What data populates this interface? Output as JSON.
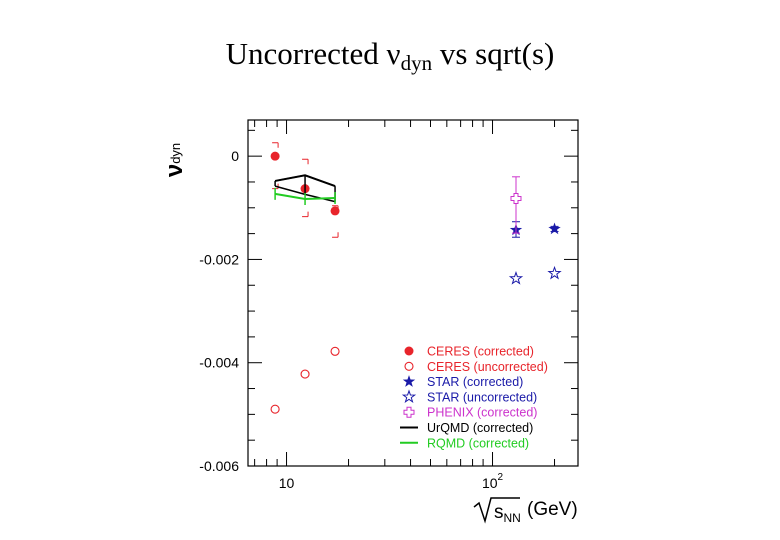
{
  "slide": {
    "title_main": "Uncorrected ν",
    "title_sub": "dyn",
    "title_tail": " vs sqrt(s)"
  },
  "chart_data": {
    "type": "scatter",
    "title": "",
    "ylabel": "ν",
    "ylabel_sub": "dyn",
    "xlabel": "(GeV)",
    "xlabel_var": "s",
    "xlabel_var_sub": "NN",
    "x_scale": "log",
    "xlim": [
      6.5,
      260
    ],
    "ylim": [
      -0.006,
      0.0007
    ],
    "y_ticks": [
      {
        "value": 0,
        "label": "0"
      },
      {
        "value": -0.002,
        "label": "-0.002"
      },
      {
        "value": -0.004,
        "label": "-0.004"
      },
      {
        "value": -0.006,
        "label": "-0.006"
      }
    ],
    "x_ticks": [
      {
        "value": 10,
        "label": "10",
        "sup": ""
      },
      {
        "value": 100,
        "label": "10",
        "sup": "2"
      }
    ],
    "legend_position": "bottom-right",
    "series": [
      {
        "name": "CERES (corrected)",
        "color": "#e8242b",
        "marker": "filled-circle",
        "x": [
          8.8,
          12.3,
          17.2
        ],
        "y": [
          0.0,
          -0.00063,
          -0.00106
        ],
        "yerr_lo": [
          -0.00063,
          -0.00117,
          -0.00157
        ],
        "yerr_hi": [
          0.00026,
          -6e-05,
          -0.00096
        ]
      },
      {
        "name": "CERES (uncorrected)",
        "color": "#e8242b",
        "marker": "open-circle",
        "x": [
          8.8,
          12.3,
          17.2
        ],
        "y": [
          -0.0049,
          -0.00422,
          -0.00378
        ]
      },
      {
        "name": "STAR   (corrected)",
        "color": "#1a1aa8",
        "marker": "filled-star",
        "x": [
          130,
          200
        ],
        "y": [
          -0.00143,
          -0.00141
        ],
        "yerr_lo": [
          -0.00157,
          -0.00146
        ],
        "yerr_hi": [
          -0.00127,
          -0.00136
        ]
      },
      {
        "name": "STAR   (uncorrected)",
        "color": "#1a1aa8",
        "marker": "open-star",
        "x": [
          130,
          200
        ],
        "y": [
          -0.00237,
          -0.00227
        ]
      },
      {
        "name": "PHENIX (corrected)",
        "color": "#cc33cc",
        "marker": "open-cross",
        "x": [
          130
        ],
        "y": [
          -0.00082
        ],
        "yerr_lo": [
          -0.00149
        ],
        "yerr_hi": [
          -0.0004
        ]
      },
      {
        "name": "UrQMD (corrected)",
        "color": "#000000",
        "marker": "line",
        "x": [
          8.8,
          12.3,
          17.2
        ],
        "y": [
          -0.00048,
          -0.00037,
          -0.00058
        ],
        "bands": [
          {
            "x": 8.8,
            "lo": -0.00058,
            "hi": -0.00048
          },
          {
            "x": 12.3,
            "lo": -0.00074,
            "hi": -0.00037
          },
          {
            "x": 17.2,
            "lo": -0.00088,
            "hi": -0.00058
          }
        ]
      },
      {
        "name": "RQMD  (corrected)",
        "color": "#22cc22",
        "marker": "line",
        "x": [
          8.8,
          12.3,
          17.2
        ],
        "y": [
          -0.00073,
          -0.00083,
          -0.00081
        ]
      }
    ]
  }
}
